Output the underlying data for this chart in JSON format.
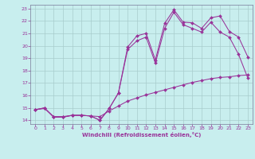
{
  "xlabel": "Windchill (Refroidissement éolien,°C)",
  "bg_color": "#c8eeee",
  "grid_color": "#a8cccc",
  "line_color": "#993399",
  "spine_color": "#7a7a9a",
  "xlim": [
    -0.5,
    23.5
  ],
  "ylim": [
    13.7,
    23.3
  ],
  "xticks": [
    0,
    1,
    2,
    3,
    4,
    5,
    6,
    7,
    8,
    9,
    10,
    11,
    12,
    13,
    14,
    15,
    16,
    17,
    18,
    19,
    20,
    21,
    22,
    23
  ],
  "yticks": [
    14,
    15,
    16,
    17,
    18,
    19,
    20,
    21,
    22,
    23
  ],
  "line1_x": [
    0,
    1,
    2,
    3,
    4,
    5,
    6,
    7,
    8,
    9,
    10,
    11,
    12,
    13,
    14,
    15,
    16,
    17,
    18,
    19,
    20,
    21,
    22,
    23
  ],
  "line1_y": [
    14.85,
    15.0,
    14.25,
    14.25,
    14.4,
    14.4,
    14.35,
    14.0,
    14.95,
    16.2,
    19.9,
    20.8,
    21.0,
    18.85,
    21.8,
    22.9,
    21.9,
    21.85,
    21.4,
    22.25,
    22.4,
    21.15,
    20.7,
    19.1
  ],
  "line2_x": [
    0,
    1,
    2,
    3,
    4,
    5,
    6,
    7,
    8,
    9,
    10,
    11,
    12,
    13,
    14,
    15,
    16,
    17,
    18,
    19,
    20,
    21,
    22,
    23
  ],
  "line2_y": [
    14.85,
    15.0,
    14.25,
    14.25,
    14.4,
    14.4,
    14.35,
    14.0,
    14.95,
    16.2,
    19.7,
    20.4,
    20.7,
    18.6,
    21.4,
    22.7,
    21.7,
    21.4,
    21.1,
    21.9,
    21.1,
    20.7,
    19.3,
    17.4
  ],
  "line3_x": [
    0,
    1,
    2,
    3,
    4,
    5,
    6,
    7,
    8,
    9,
    10,
    11,
    12,
    13,
    14,
    15,
    16,
    17,
    18,
    19,
    20,
    21,
    22,
    23
  ],
  "line3_y": [
    14.85,
    14.95,
    14.3,
    14.3,
    14.4,
    14.4,
    14.35,
    14.3,
    14.75,
    15.15,
    15.55,
    15.8,
    16.05,
    16.25,
    16.45,
    16.65,
    16.85,
    17.05,
    17.2,
    17.35,
    17.45,
    17.5,
    17.6,
    17.65
  ]
}
